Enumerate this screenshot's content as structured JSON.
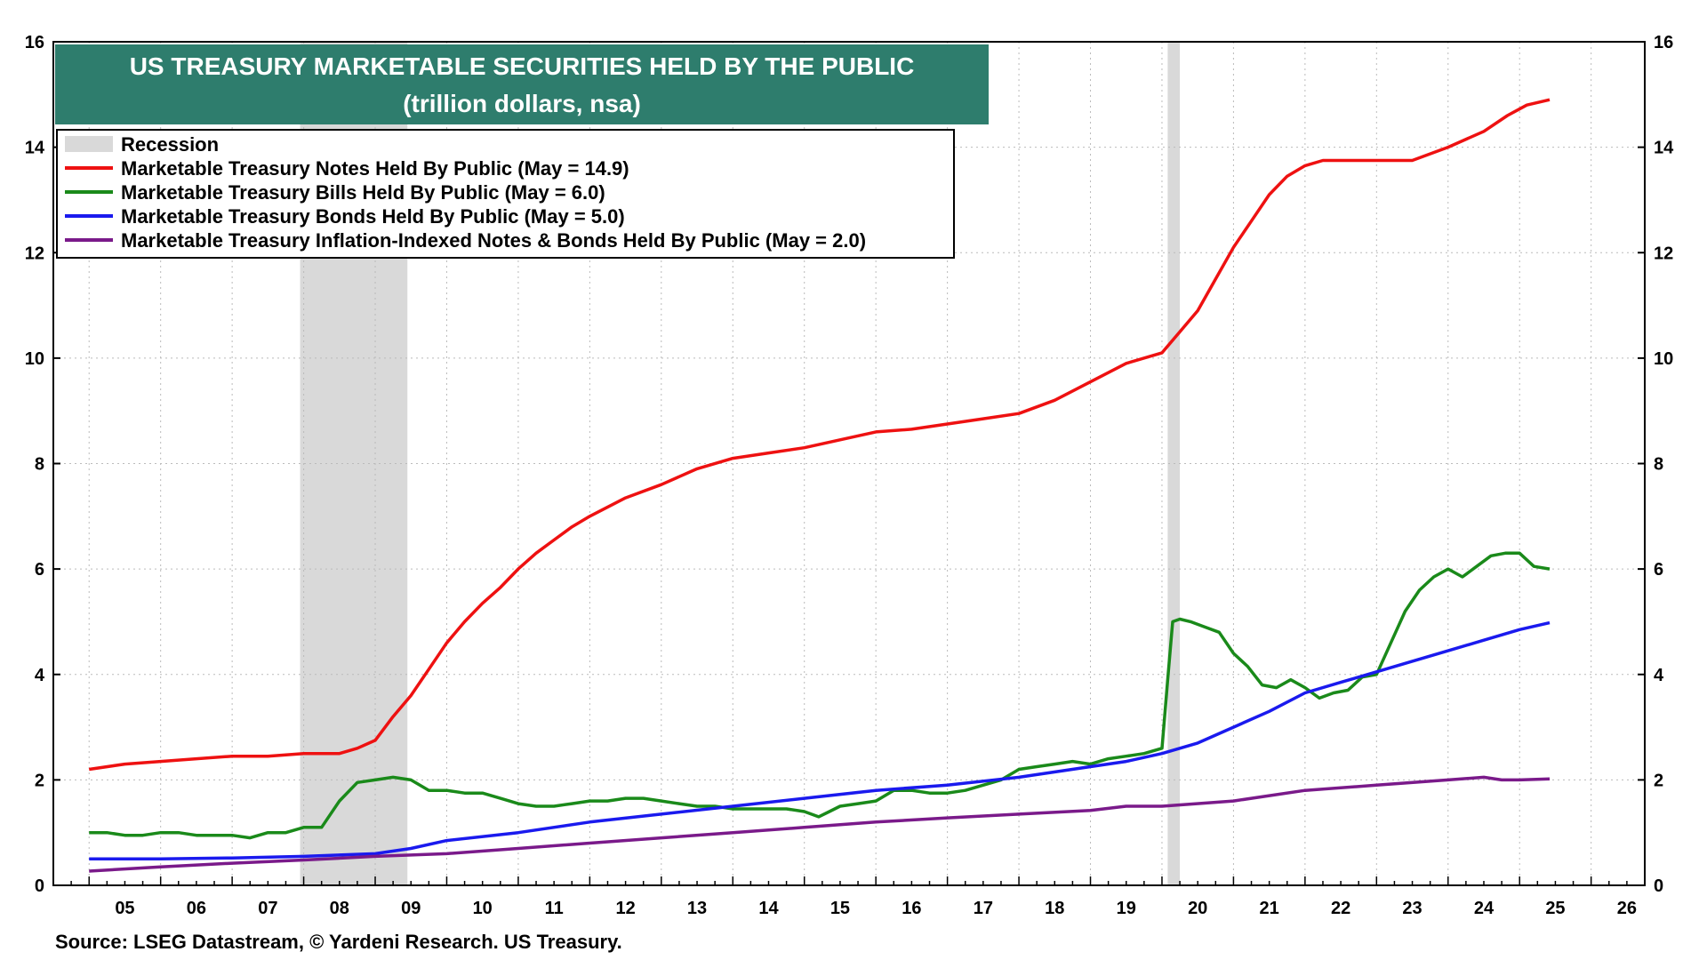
{
  "chart_data": {
    "type": "line",
    "title": "US TREASURY MARKETABLE SECURITIES HELD BY THE PUBLIC",
    "subtitle": "(trillion dollars, nsa)",
    "source": "Source: LSEG Datastream, © Yardeni Research. US Treasury.",
    "x_tick_labels": [
      "05",
      "06",
      "07",
      "08",
      "09",
      "10",
      "11",
      "12",
      "13",
      "14",
      "15",
      "16",
      "17",
      "18",
      "19",
      "20",
      "21",
      "22",
      "23",
      "24",
      "25",
      "26"
    ],
    "xlim": [
      2004.5,
      2026.75
    ],
    "ylim": [
      0,
      16
    ],
    "y_ticks": [
      0,
      2,
      4,
      6,
      8,
      10,
      12,
      14,
      16
    ],
    "grid": true,
    "legend_position": "top-left",
    "recessions": [
      {
        "start": 2007.95,
        "end": 2009.45
      },
      {
        "start": 2020.08,
        "end": 2020.25
      }
    ],
    "legend": [
      {
        "label": "Recession",
        "type": "recession",
        "color": "#d9d9d9"
      },
      {
        "label": "Marketable Treasury Notes Held By Public (May = 14.9)",
        "series": 0
      },
      {
        "label": "Marketable Treasury Bills Held By Public (May = 6.0)",
        "series": 1
      },
      {
        "label": "Marketable Treasury Bonds Held By Public (May = 5.0)",
        "series": 2
      },
      {
        "label": "Marketable Treasury Inflation-Indexed Notes & Bonds Held By Public (May = 2.0)",
        "series": 3
      }
    ],
    "series": [
      {
        "color": "#ee1111",
        "x": [
          2005.0,
          2005.5,
          2006.0,
          2006.5,
          2007.0,
          2007.5,
          2008.0,
          2008.5,
          2008.75,
          2009.0,
          2009.25,
          2009.5,
          2009.75,
          2010.0,
          2010.25,
          2010.5,
          2010.75,
          2011.0,
          2011.25,
          2011.5,
          2011.75,
          2012.0,
          2012.5,
          2013.0,
          2013.5,
          2014.0,
          2014.5,
          2015.0,
          2015.5,
          2016.0,
          2016.5,
          2017.0,
          2017.5,
          2018.0,
          2018.5,
          2019.0,
          2019.5,
          2020.0,
          2020.25,
          2020.5,
          2020.75,
          2021.0,
          2021.25,
          2021.5,
          2021.75,
          2022.0,
          2022.25,
          2022.5,
          2022.75,
          2023.0,
          2023.5,
          2024.0,
          2024.5,
          2024.83,
          2025.1,
          2025.42
        ],
        "y": [
          2.2,
          2.3,
          2.35,
          2.4,
          2.45,
          2.45,
          2.5,
          2.5,
          2.6,
          2.75,
          3.2,
          3.6,
          4.1,
          4.6,
          5.0,
          5.35,
          5.65,
          6.0,
          6.3,
          6.55,
          6.8,
          7.0,
          7.35,
          7.6,
          7.9,
          8.1,
          8.2,
          8.3,
          8.45,
          8.6,
          8.65,
          8.75,
          8.85,
          8.95,
          9.2,
          9.55,
          9.9,
          10.1,
          10.5,
          10.9,
          11.5,
          12.1,
          12.6,
          13.1,
          13.45,
          13.65,
          13.75,
          13.75,
          13.75,
          13.75,
          13.75,
          14.0,
          14.3,
          14.6,
          14.8,
          14.9
        ]
      },
      {
        "color": "#1a8a1a",
        "x": [
          2005.0,
          2005.25,
          2005.5,
          2005.75,
          2006.0,
          2006.25,
          2006.5,
          2006.75,
          2007.0,
          2007.25,
          2007.5,
          2007.75,
          2008.0,
          2008.25,
          2008.5,
          2008.75,
          2009.0,
          2009.25,
          2009.5,
          2009.75,
          2010.0,
          2010.25,
          2010.5,
          2010.75,
          2011.0,
          2011.25,
          2011.5,
          2011.75,
          2012.0,
          2012.25,
          2012.5,
          2012.75,
          2013.0,
          2013.25,
          2013.5,
          2013.75,
          2014.0,
          2014.25,
          2014.5,
          2014.75,
          2015.0,
          2015.2,
          2015.35,
          2015.5,
          2015.75,
          2016.0,
          2016.25,
          2016.5,
          2016.75,
          2017.0,
          2017.25,
          2017.5,
          2017.75,
          2018.0,
          2018.25,
          2018.5,
          2018.75,
          2019.0,
          2019.25,
          2019.5,
          2019.75,
          2020.0,
          2020.08,
          2020.15,
          2020.25,
          2020.4,
          2020.6,
          2020.8,
          2021.0,
          2021.2,
          2021.4,
          2021.6,
          2021.8,
          2022.0,
          2022.2,
          2022.4,
          2022.6,
          2022.8,
          2023.0,
          2023.2,
          2023.4,
          2023.6,
          2023.8,
          2024.0,
          2024.2,
          2024.4,
          2024.6,
          2024.8,
          2025.0,
          2025.2,
          2025.42
        ],
        "y": [
          1.0,
          1.0,
          0.95,
          0.95,
          1.0,
          1.0,
          0.95,
          0.95,
          0.95,
          0.9,
          1.0,
          1.0,
          1.1,
          1.1,
          1.6,
          1.95,
          2.0,
          2.05,
          2.0,
          1.8,
          1.8,
          1.75,
          1.75,
          1.65,
          1.55,
          1.5,
          1.5,
          1.55,
          1.6,
          1.6,
          1.65,
          1.65,
          1.6,
          1.55,
          1.5,
          1.5,
          1.45,
          1.45,
          1.45,
          1.45,
          1.4,
          1.3,
          1.4,
          1.5,
          1.55,
          1.6,
          1.8,
          1.8,
          1.75,
          1.75,
          1.8,
          1.9,
          2.0,
          2.2,
          2.25,
          2.3,
          2.35,
          2.3,
          2.4,
          2.45,
          2.5,
          2.6,
          3.9,
          5.0,
          5.05,
          5.0,
          4.9,
          4.8,
          4.4,
          4.15,
          3.8,
          3.75,
          3.9,
          3.75,
          3.55,
          3.65,
          3.7,
          3.95,
          4.0,
          4.6,
          5.2,
          5.6,
          5.85,
          6.0,
          5.85,
          6.05,
          6.25,
          6.3,
          6.3,
          6.05,
          6.0
        ]
      },
      {
        "color": "#1a1aee",
        "x": [
          2005.0,
          2006.0,
          2007.0,
          2008.0,
          2009.0,
          2009.5,
          2010.0,
          2011.0,
          2012.0,
          2013.0,
          2014.0,
          2015.0,
          2016.0,
          2017.0,
          2018.0,
          2019.0,
          2019.5,
          2020.0,
          2020.5,
          2021.0,
          2021.5,
          2022.0,
          2022.5,
          2023.0,
          2023.5,
          2024.0,
          2024.5,
          2025.0,
          2025.42
        ],
        "y": [
          0.5,
          0.5,
          0.52,
          0.55,
          0.6,
          0.7,
          0.85,
          1.0,
          1.2,
          1.35,
          1.5,
          1.65,
          1.8,
          1.9,
          2.05,
          2.25,
          2.35,
          2.5,
          2.7,
          3.0,
          3.3,
          3.65,
          3.85,
          4.05,
          4.25,
          4.45,
          4.65,
          4.85,
          4.98
        ]
      },
      {
        "color": "#7a1a8a",
        "x": [
          2005.0,
          2006.0,
          2007.0,
          2008.0,
          2009.0,
          2010.0,
          2011.0,
          2012.0,
          2013.0,
          2014.0,
          2015.0,
          2016.0,
          2017.0,
          2018.0,
          2019.0,
          2019.5,
          2020.0,
          2021.0,
          2022.0,
          2023.0,
          2024.0,
          2024.5,
          2024.75,
          2025.0,
          2025.42
        ],
        "y": [
          0.27,
          0.35,
          0.42,
          0.48,
          0.55,
          0.6,
          0.7,
          0.8,
          0.9,
          1.0,
          1.1,
          1.2,
          1.28,
          1.35,
          1.42,
          1.5,
          1.5,
          1.6,
          1.8,
          1.9,
          2.0,
          2.05,
          2.0,
          2.0,
          2.02
        ]
      }
    ]
  }
}
